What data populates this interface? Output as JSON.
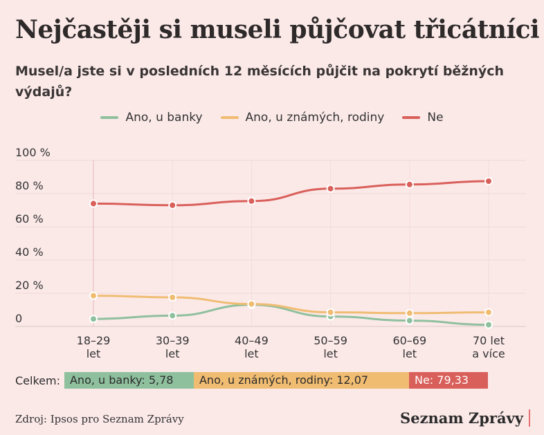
{
  "title": "Nejčastěji si museli půjčovat třicátníci",
  "subtitle": "Musel/a jste si v posledních 12 měsících půjčit na pokrytí běžných výdajů?",
  "chart_data": {
    "type": "line",
    "categories": [
      "18–29 let",
      "30–39 let",
      "40–49 let",
      "50–59 let",
      "60–69 let",
      "70 let a více"
    ],
    "category_lines": [
      [
        "18–29",
        "let"
      ],
      [
        "30–39",
        "let"
      ],
      [
        "40–49",
        "let"
      ],
      [
        "50–59",
        "let"
      ],
      [
        "60–69",
        "let"
      ],
      [
        "70 let",
        "a více"
      ]
    ],
    "ylim": [
      0,
      100
    ],
    "yticks": [
      0,
      20,
      40,
      60,
      80,
      100
    ],
    "ytick_labels": [
      "0",
      "20 %",
      "40 %",
      "60 %",
      "80 %",
      "100 %"
    ],
    "series": [
      {
        "name": "Ano, u banky",
        "color": "#8fc09e",
        "values": [
          4.5,
          6.5,
          13,
          6,
          3.5,
          1
        ]
      },
      {
        "name": "Ano, u známých, rodiny",
        "color": "#f0bc72",
        "values": [
          18.5,
          17.5,
          13.5,
          8.5,
          8,
          8.5
        ]
      },
      {
        "name": "Ne",
        "color": "#d95f5a",
        "values": [
          74,
          73,
          75.5,
          83,
          85.5,
          87.5
        ]
      }
    ],
    "grid": true,
    "legend_position": "top-center"
  },
  "totals": {
    "label": "Celkem:",
    "items": [
      {
        "text": "Ano, u banky: 5,78",
        "color": "#8fc09e"
      },
      {
        "text": "Ano, u známých, rodiny: 12,07",
        "color": "#f0bc72"
      },
      {
        "text": "Ne: 79,33",
        "color": "#d95f5a"
      }
    ]
  },
  "footer": {
    "source": "Zdroj: Ipsos pro Seznam Zprávy",
    "brand": "Seznam Zprávy"
  }
}
